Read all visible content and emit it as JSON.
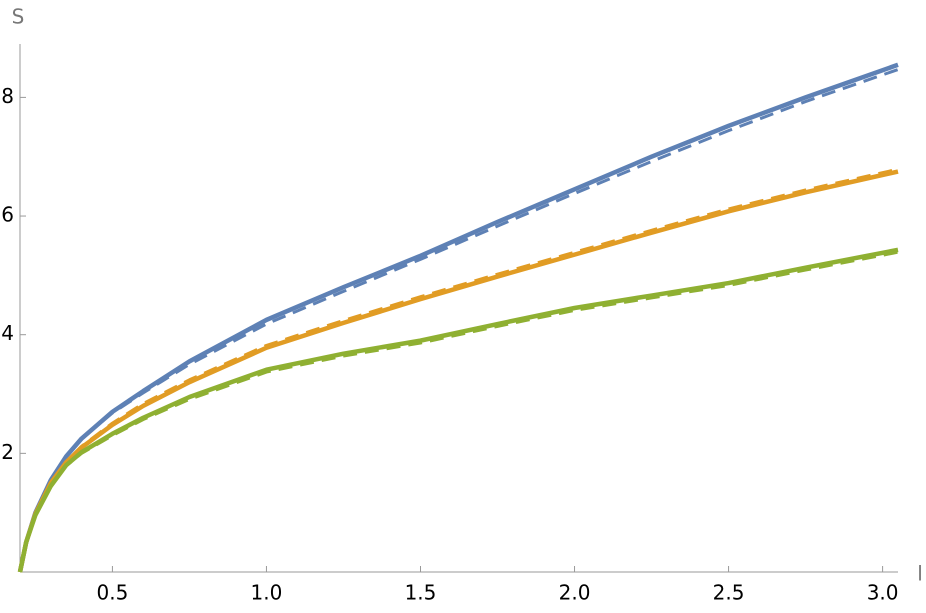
{
  "chart_data": {
    "type": "line",
    "x_label": "l",
    "y_label": "S",
    "x": [
      0.2,
      0.22,
      0.25,
      0.3,
      0.35,
      0.4,
      0.5,
      0.6,
      0.75,
      1.0,
      1.25,
      1.5,
      1.75,
      2.0,
      2.25,
      2.5,
      2.75,
      3.05
    ],
    "series": [
      {
        "color": "#5e81b5",
        "dash": false,
        "values": [
          0,
          0.5,
          1.0,
          1.55,
          1.95,
          2.25,
          2.7,
          3.05,
          3.55,
          4.25,
          4.8,
          5.33,
          5.9,
          6.45,
          7.0,
          7.52,
          8.0,
          8.55
        ]
      },
      {
        "color": "#5e81b5",
        "dash": true,
        "values": [
          0,
          0.5,
          1.0,
          1.55,
          1.95,
          2.25,
          2.68,
          3.02,
          3.5,
          4.18,
          4.73,
          5.27,
          5.83,
          6.38,
          6.92,
          7.44,
          7.93,
          8.47
        ]
      },
      {
        "color": "#e19c24",
        "dash": false,
        "values": [
          0,
          0.5,
          0.98,
          1.5,
          1.85,
          2.1,
          2.48,
          2.8,
          3.2,
          3.78,
          4.2,
          4.6,
          4.98,
          5.35,
          5.72,
          6.08,
          6.4,
          6.75
        ]
      },
      {
        "color": "#e19c24",
        "dash": true,
        "values": [
          0,
          0.5,
          0.98,
          1.5,
          1.86,
          2.12,
          2.51,
          2.84,
          3.24,
          3.82,
          4.24,
          4.64,
          5.02,
          5.39,
          5.76,
          6.12,
          6.44,
          6.79
        ]
      },
      {
        "color": "#8fb032",
        "dash": false,
        "values": [
          0,
          0.5,
          0.96,
          1.45,
          1.8,
          2.02,
          2.33,
          2.6,
          2.95,
          3.41,
          3.68,
          3.9,
          4.18,
          4.45,
          4.66,
          4.87,
          5.13,
          5.43
        ]
      },
      {
        "color": "#8fb032",
        "dash": true,
        "values": [
          0,
          0.5,
          0.96,
          1.45,
          1.79,
          2.0,
          2.3,
          2.57,
          2.91,
          3.37,
          3.64,
          3.86,
          4.14,
          4.41,
          4.62,
          4.83,
          5.09,
          5.39
        ]
      }
    ],
    "xlim": [
      0.2,
      3.05
    ],
    "ylim": [
      0,
      8.9
    ],
    "xticks": [
      0.5,
      {
        "value": 1,
        "label": "1.0"
      },
      1.5,
      {
        "value": 2,
        "label": "2.0"
      },
      2.5,
      {
        "value": 3,
        "label": "3.0"
      }
    ],
    "yticks": [
      2,
      4,
      6,
      8
    ]
  }
}
